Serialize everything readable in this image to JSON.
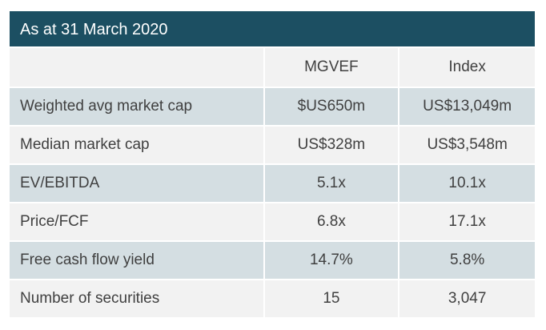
{
  "table": {
    "title": "As at 31 March 2020",
    "columns": [
      "",
      "MGVEF",
      "Index"
    ],
    "rows": [
      {
        "label": "Weighted avg market cap",
        "mgvef": "$US650m",
        "index": "US$13,049m"
      },
      {
        "label": "Median market cap",
        "mgvef": "US$328m",
        "index": "US$3,548m"
      },
      {
        "label": "EV/EBITDA",
        "mgvef": "5.1x",
        "index": "10.1x"
      },
      {
        "label": "Price/FCF",
        "mgvef": "6.8x",
        "index": "17.1x"
      },
      {
        "label": "Free cash flow yield",
        "mgvef": "14.7%",
        "index": "5.8%"
      },
      {
        "label": "Number of securities",
        "mgvef": "15",
        "index": "3,047"
      }
    ]
  },
  "colors": {
    "header_bg": "#1c4f62",
    "shaded_row": "#d4dee2",
    "plain_row": "#f2f2f2"
  }
}
